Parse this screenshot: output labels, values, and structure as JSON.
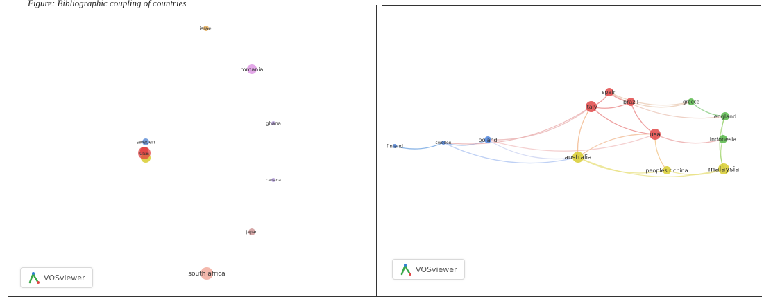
{
  "caption": "Figure: Bibliographic coupling of countries",
  "logo_text": "VOSviewer",
  "left_map": {
    "nodes": [
      {
        "label": "israel",
        "color": "#e0a040",
        "cluster": "orange"
      },
      {
        "label": "romania",
        "color": "#d98be0",
        "cluster": "pink"
      },
      {
        "label": "ghana",
        "color": "#a98fd6",
        "cluster": "purple"
      },
      {
        "label": "sweden",
        "color": "#4a7fd0",
        "cluster": "blue"
      },
      {
        "label": "usa",
        "color": "#e04040",
        "cluster": "red"
      },
      {
        "label": "canada",
        "color": "#a98fd6",
        "cluster": "purple"
      },
      {
        "label": "japan",
        "color": "#c88a8a",
        "cluster": "brown"
      },
      {
        "label": "south africa",
        "color": "#f0a090",
        "cluster": "salmon"
      }
    ]
  },
  "right_map": {
    "nodes": [
      {
        "label": "spain",
        "color": "#e04848"
      },
      {
        "label": "italy",
        "color": "#e04848"
      },
      {
        "label": "brazil",
        "color": "#e04848"
      },
      {
        "label": "usa",
        "color": "#e04848"
      },
      {
        "label": "greece",
        "color": "#58b84a"
      },
      {
        "label": "england",
        "color": "#58b84a"
      },
      {
        "label": "indonesia",
        "color": "#58b84a"
      },
      {
        "label": "finland",
        "color": "#4a80d8"
      },
      {
        "label": "sweden",
        "color": "#4a80d8"
      },
      {
        "label": "poland",
        "color": "#4a80d8"
      },
      {
        "label": "australia",
        "color": "#d8cc30"
      },
      {
        "label": "peoples r china",
        "color": "#d8cc30"
      },
      {
        "label": "malaysia",
        "color": "#d8cc30"
      }
    ]
  }
}
